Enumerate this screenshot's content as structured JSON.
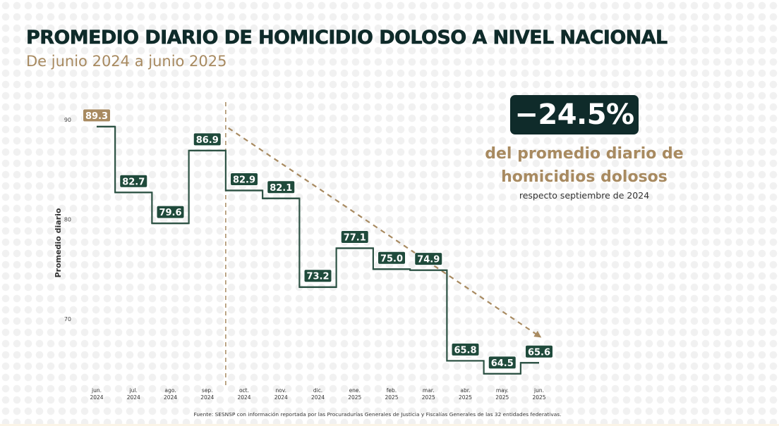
{
  "header": {
    "title": "PROMEDIO DIARIO DE HOMICIDIO DOLOSO A NIVEL NACIONAL",
    "subtitle": "De junio 2024 a junio 2025"
  },
  "kpi": {
    "value": "−24.5%",
    "description_line1": "del promedio diario de",
    "description_line2": "homicidios dolosos",
    "note": "respecto septiembre de 2024"
  },
  "source": "Fuente: SESNSP con información reportada por las Procuradurías Generales de Justicia y Fiscalías Generales de las 32 entidades federativas.",
  "colors": {
    "line": "#2d5244",
    "label_bg": "#1f4a3b",
    "highlight_label_bg": "#a88a60",
    "trend": "#a88a60",
    "kpi_bg": "#0f2b2a",
    "title": "#0f2b2a"
  },
  "chart_data": {
    "type": "line",
    "step": true,
    "title": "PROMEDIO DIARIO DE HOMICIDIO DOLOSO A NIVEL NACIONAL",
    "subtitle": "De junio 2024 a junio 2025",
    "xlabel": "",
    "ylabel": "Promedio diario",
    "ylim": [
      61.5,
      91.5
    ],
    "yticks": [
      70,
      80,
      90
    ],
    "grid": false,
    "categories": [
      [
        "jun.",
        "2024"
      ],
      [
        "jul.",
        "2024"
      ],
      [
        "ago.",
        "2024"
      ],
      [
        "sep.",
        "2024"
      ],
      [
        "oct.",
        "2024"
      ],
      [
        "nov.",
        "2024"
      ],
      [
        "dic.",
        "2024"
      ],
      [
        "ene.",
        "2025"
      ],
      [
        "feb.",
        "2025"
      ],
      [
        "mar.",
        "2025"
      ],
      [
        "abr.",
        "2025"
      ],
      [
        "may.",
        "2025"
      ],
      [
        "jun.",
        "2025"
      ]
    ],
    "series": [
      {
        "name": "Promedio diario",
        "values": [
          89.3,
          82.7,
          79.6,
          86.9,
          82.9,
          82.1,
          73.2,
          77.1,
          75.0,
          74.9,
          65.8,
          64.5,
          65.6
        ],
        "labels": [
          "89.3",
          "82.7",
          "79.6",
          "86.9",
          "82.9",
          "82.1",
          "73.2",
          "77.1",
          "75.0",
          "74.9",
          "65.8",
          "64.5",
          "65.6"
        ],
        "highlight_index": 0
      }
    ],
    "annotations": {
      "reference_line_between": [
        "sep.",
        "oct."
      ],
      "trend_arrow": {
        "from": "sep. 2024",
        "to": "jun. 2025",
        "style": "dashed"
      }
    }
  }
}
